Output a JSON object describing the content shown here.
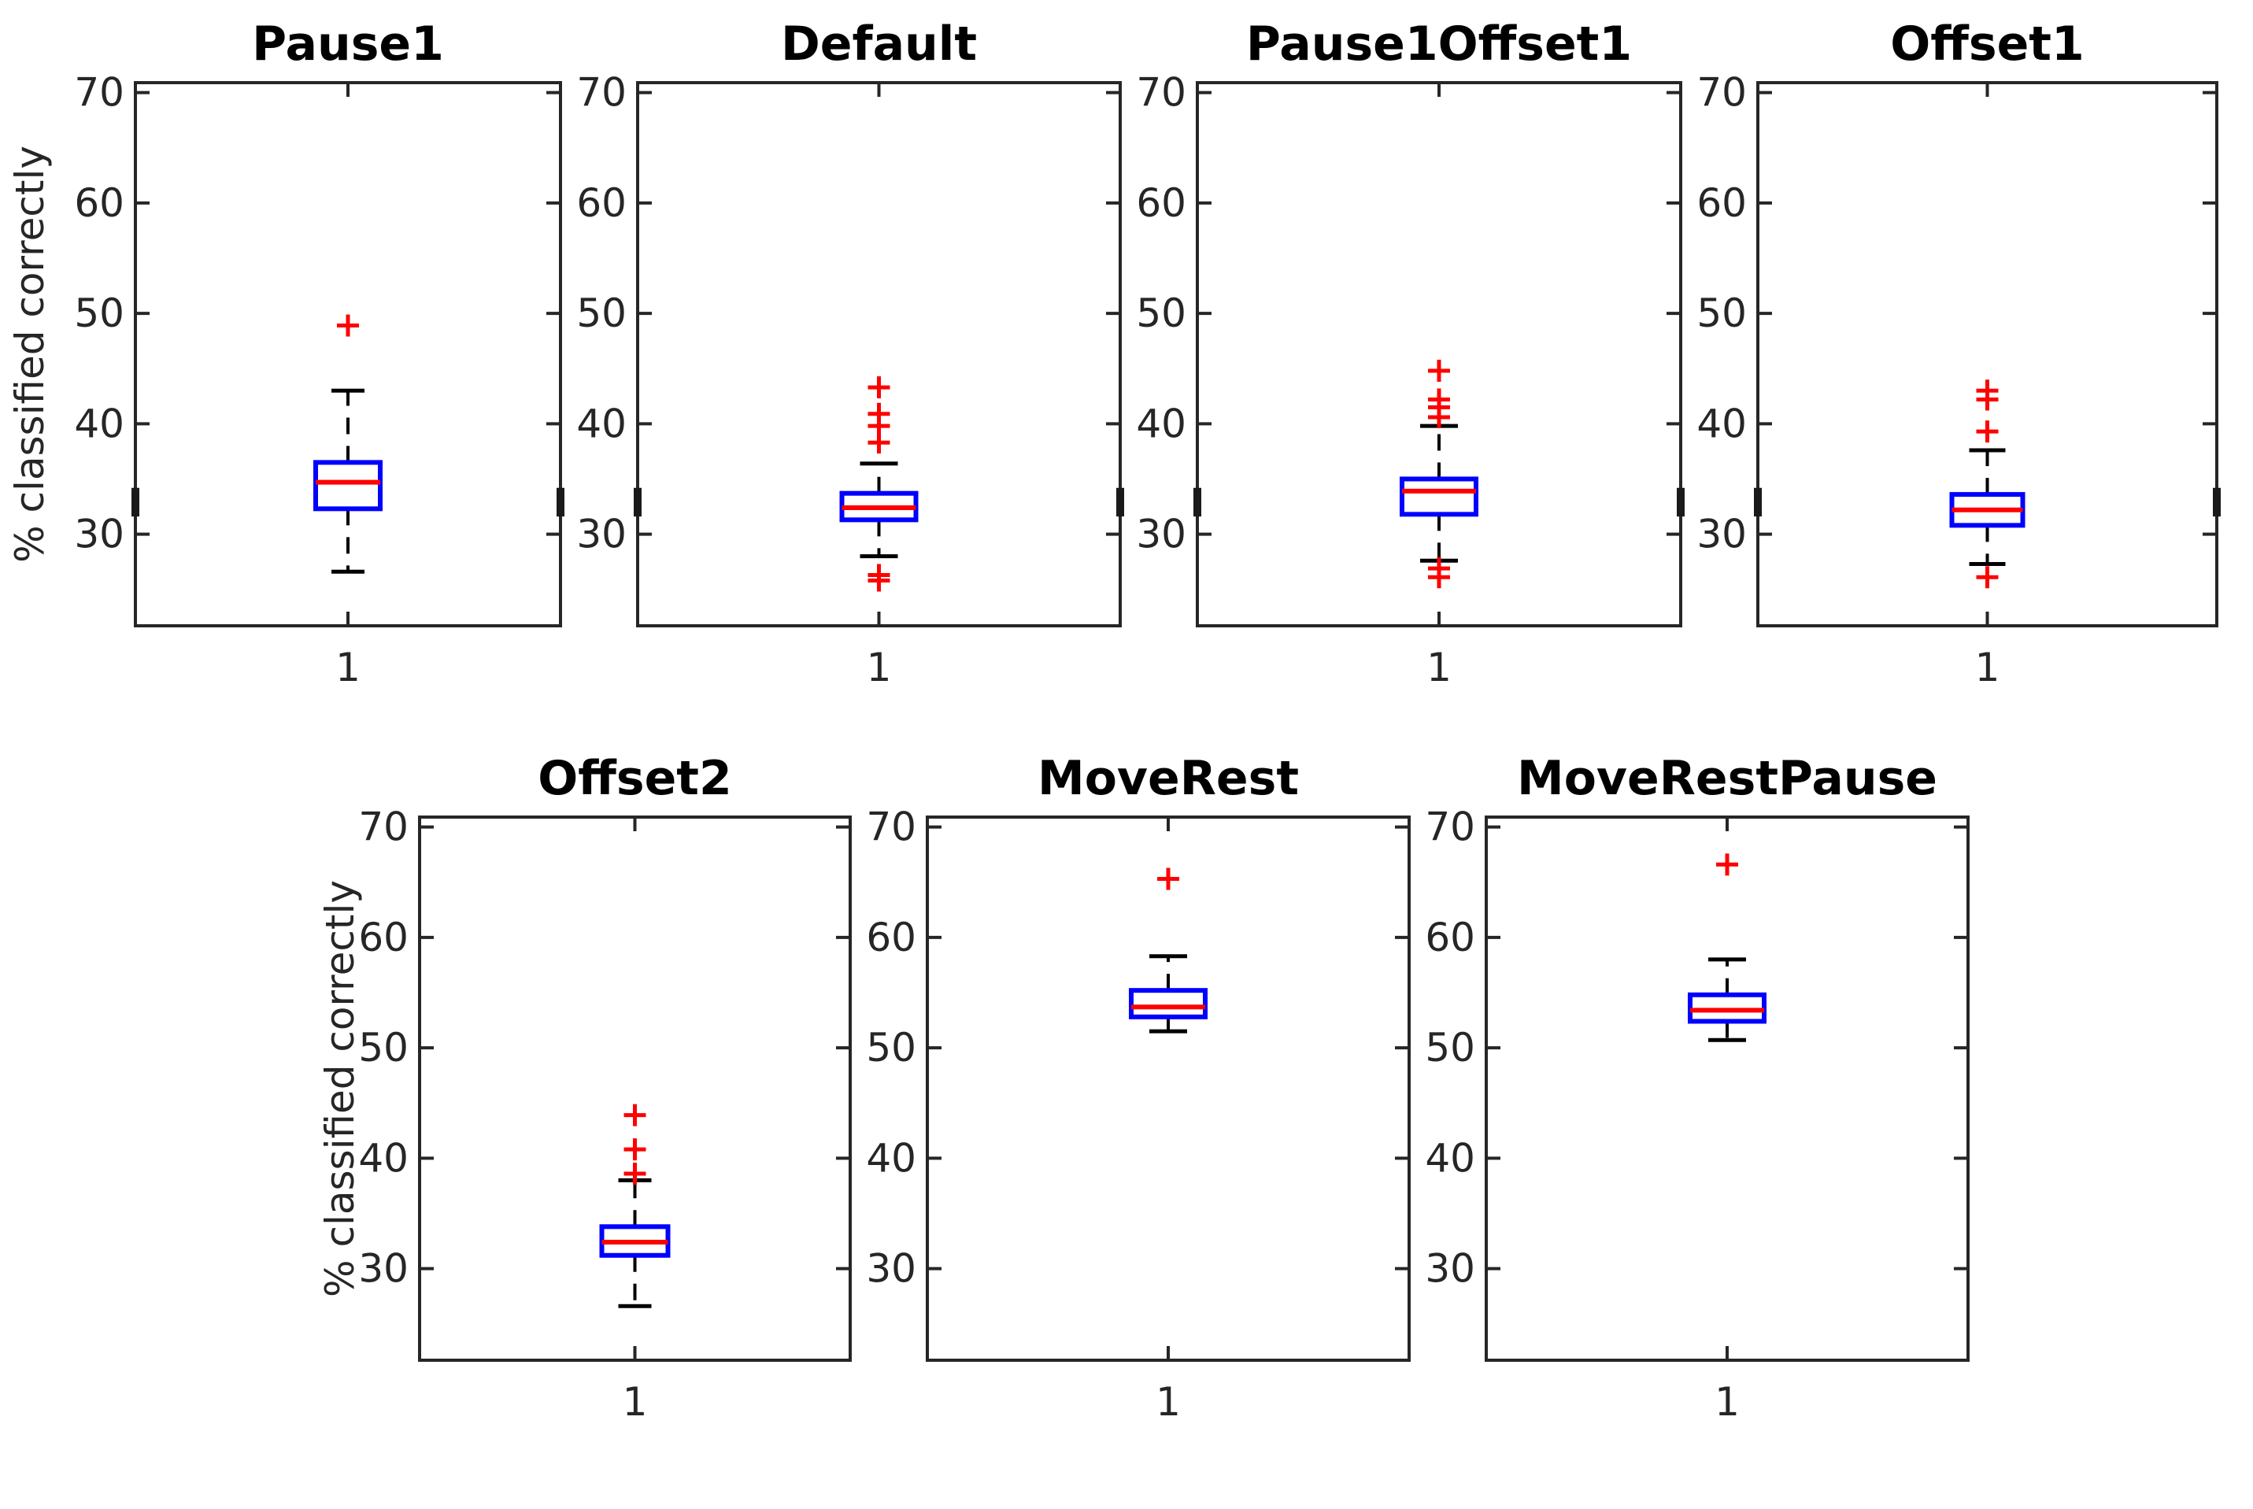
{
  "figure": {
    "background": "#ffffff"
  },
  "chart_data": {
    "type": "boxplot",
    "ylabel": "% classified correctly",
    "xticklabel": "1",
    "yticks": [
      70,
      60,
      50,
      40,
      30
    ],
    "ylim": [
      21.7,
      70.9
    ],
    "grid": false,
    "colors": {
      "box": "#0000ff",
      "median": "#ff0000",
      "outlier": "#ff0000",
      "whisker": "#000000",
      "axes": "#262626",
      "tick_text": "#262626",
      "title_text": "#000000"
    },
    "panels": [
      {
        "title": "Pause1",
        "row": 0,
        "stats": {
          "whisker_low": 26.6,
          "q1": 32.3,
          "median": 34.7,
          "q3": 36.5,
          "whisker_high": 43.0
        },
        "outliers": [
          48.9
        ],
        "edge_mark": [
          31.6,
          34.2
        ]
      },
      {
        "title": "Default",
        "row": 0,
        "stats": {
          "whisker_low": 28.0,
          "q1": 31.3,
          "median": 32.4,
          "q3": 33.7,
          "whisker_high": 36.4
        },
        "outliers": [
          43.3,
          40.9,
          39.8,
          38.3,
          26.3,
          25.8
        ],
        "edge_mark": [
          31.6,
          34.2
        ]
      },
      {
        "title": "Pause1Offset1",
        "row": 0,
        "stats": {
          "whisker_low": 27.6,
          "q1": 31.8,
          "median": 33.9,
          "q3": 35.0,
          "whisker_high": 39.8
        },
        "outliers": [
          44.8,
          42.2,
          41.5,
          40.6,
          26.9,
          26.1
        ],
        "edge_mark": [
          31.6,
          34.2
        ]
      },
      {
        "title": "Offset1",
        "row": 0,
        "stats": {
          "whisker_low": 27.3,
          "q1": 30.8,
          "median": 32.2,
          "q3": 33.6,
          "whisker_high": 37.6
        },
        "outliers": [
          43.0,
          42.2,
          39.3,
          26.1
        ],
        "edge_mark": [
          31.6,
          34.2
        ]
      },
      {
        "title": "Offset2",
        "row": 1,
        "stats": {
          "whisker_low": 26.6,
          "q1": 31.2,
          "median": 32.4,
          "q3": 33.8,
          "whisker_high": 38.0
        },
        "outliers": [
          43.9,
          40.8,
          38.6
        ],
        "edge_mark": null
      },
      {
        "title": "MoveRest",
        "row": 1,
        "stats": {
          "whisker_low": 51.5,
          "q1": 52.8,
          "median": 53.7,
          "q3": 55.2,
          "whisker_high": 58.3
        },
        "outliers": [
          65.3
        ],
        "edge_mark": null
      },
      {
        "title": "MoveRestPause",
        "row": 1,
        "stats": {
          "whisker_low": 50.7,
          "q1": 52.4,
          "median": 53.4,
          "q3": 54.8,
          "whisker_high": 58.0
        },
        "outliers": [
          66.6
        ],
        "edge_mark": null
      }
    ]
  }
}
